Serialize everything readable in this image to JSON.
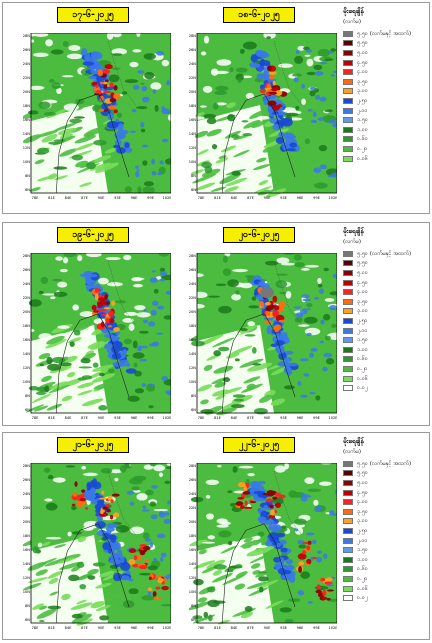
{
  "legend": {
    "title": "မိုးရေချိန်",
    "unit": "(လက်မ)",
    "max_label": "၅.၅၀ (လက်မနှင့် အထက်)",
    "levels": [
      {
        "label": "၅.၅၀ (လက်မနှင့် အထက်)",
        "color": "#777777"
      },
      {
        "label": "၅.၅၀",
        "color": "#5a0000"
      },
      {
        "label": "၅.၀၀",
        "color": "#8b0000"
      },
      {
        "label": "၄.၅၀",
        "color": "#c00000"
      },
      {
        "label": "၄.၀၀",
        "color": "#ff2020"
      },
      {
        "label": "၃.၅၀",
        "color": "#ff6a10"
      },
      {
        "label": "၃.၀၀",
        "color": "#ffa020"
      },
      {
        "label": "၂.၅၀",
        "color": "#1848d8"
      },
      {
        "label": "၂.၀၀",
        "color": "#3a78e8"
      },
      {
        "label": "၁.၅၀",
        "color": "#5c9af0"
      },
      {
        "label": "၁.၀၀",
        "color": "#1a7a1a"
      },
      {
        "label": "၀.၆၀",
        "color": "#2c9a2c"
      },
      {
        "label": "၀.၂၀",
        "color": "#4cbc40"
      },
      {
        "label": "၀.၀၆",
        "color": "#78dc5a"
      },
      {
        "label": "၀.၀၂",
        "color": "#ffffff"
      }
    ]
  },
  "panels": [
    {
      "left_date": "၁၇-၆-၂၀၂၅",
      "right_date": "၁၈-၆-၂၀၂၅"
    },
    {
      "left_date": "၁၉-၆-၂၀၂၅",
      "right_date": "၂၀-၆-၂၀၂၅"
    },
    {
      "left_date": "၂၁-၆-၂၀၂၅",
      "right_date": "၂၂-၆-၂၀၂၅"
    }
  ],
  "lat_ticks": [
    "28N",
    "26N",
    "24N",
    "22N",
    "20N",
    "18N",
    "16N",
    "14N",
    "12N",
    "10N",
    "8N",
    "6N"
  ],
  "lon_ticks": [
    "78E",
    "81E",
    "84E",
    "87E",
    "90E",
    "93E",
    "96E",
    "99E",
    "102E"
  ]
}
